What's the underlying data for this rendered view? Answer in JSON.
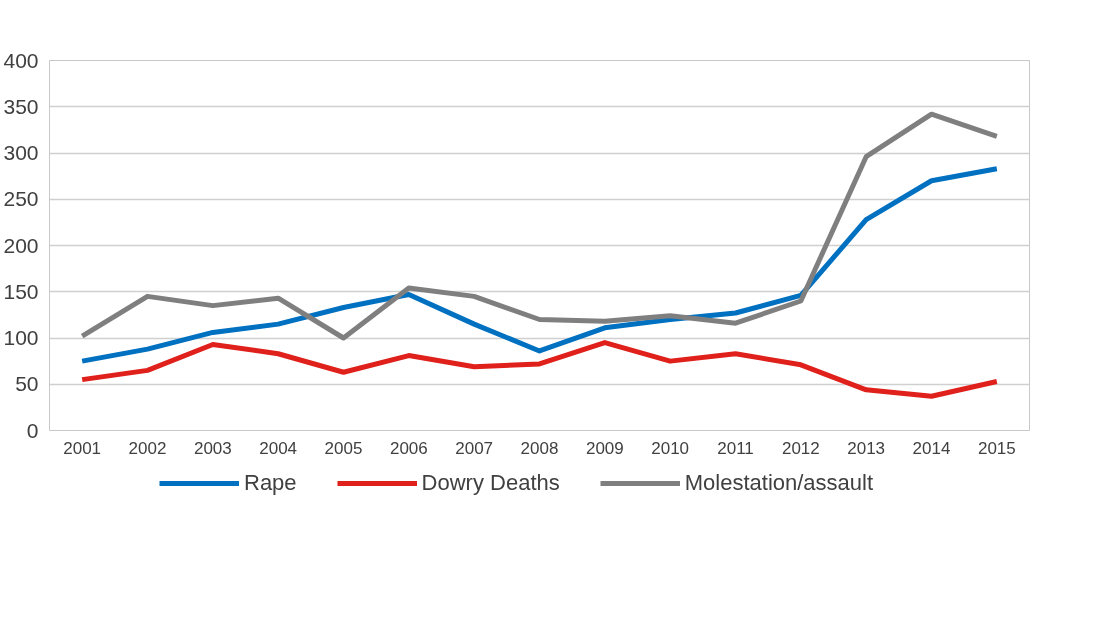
{
  "chart_data": {
    "type": "line",
    "categories": [
      "2001",
      "2002",
      "2003",
      "2004",
      "2005",
      "2006",
      "2007",
      "2008",
      "2009",
      "2010",
      "2011",
      "2012",
      "2013",
      "2014",
      "2015"
    ],
    "series": [
      {
        "name": "Rape",
        "color": "#0070c0",
        "values": [
          75,
          88,
          106,
          115,
          133,
          147,
          115,
          86,
          111,
          120,
          127,
          146,
          228,
          270,
          283
        ]
      },
      {
        "name": "Dowry Deaths",
        "color": "#e0201b",
        "values": [
          55,
          65,
          93,
          83,
          63,
          81,
          69,
          72,
          95,
          75,
          83,
          71,
          44,
          37,
          53
        ]
      },
      {
        "name": "Molestation/assault",
        "color": "#7f7f7f",
        "values": [
          102,
          145,
          135,
          143,
          100,
          154,
          145,
          120,
          118,
          124,
          116,
          140,
          296,
          342,
          318
        ]
      }
    ],
    "ylim": [
      0,
      400
    ],
    "yticks": [
      0,
      50,
      100,
      150,
      200,
      250,
      300,
      350,
      400
    ],
    "grid": "y",
    "legend": "bottom",
    "marker": "none",
    "line_style": "solid"
  }
}
